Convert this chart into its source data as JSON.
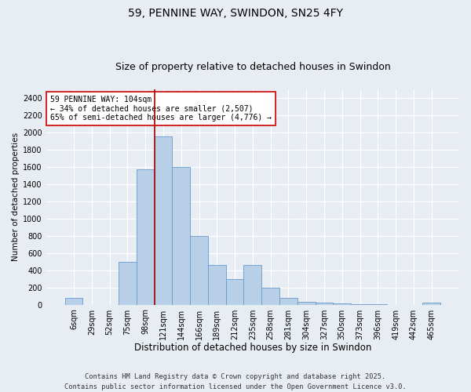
{
  "title1": "59, PENNINE WAY, SWINDON, SN25 4FY",
  "title2": "Size of property relative to detached houses in Swindon",
  "xlabel": "Distribution of detached houses by size in Swindon",
  "ylabel": "Number of detached properties",
  "categories": [
    "6sqm",
    "29sqm",
    "52sqm",
    "75sqm",
    "98sqm",
    "121sqm",
    "144sqm",
    "166sqm",
    "189sqm",
    "212sqm",
    "235sqm",
    "258sqm",
    "281sqm",
    "304sqm",
    "327sqm",
    "350sqm",
    "373sqm",
    "396sqm",
    "419sqm",
    "442sqm",
    "465sqm"
  ],
  "values": [
    75,
    0,
    0,
    500,
    1575,
    1950,
    1600,
    800,
    460,
    300,
    460,
    200,
    75,
    30,
    20,
    10,
    5,
    5,
    0,
    0,
    20
  ],
  "bar_color": "#b8cfe8",
  "bar_edge_color": "#6699cc",
  "background_color": "#e8edf4",
  "grid_color": "#d0d8e8",
  "annotation_box_color": "#ffffff",
  "annotation_box_edge": "#cc0000",
  "vline_x_index": 4.5,
  "vline_color": "#aa0000",
  "annotation_text": "59 PENNINE WAY: 104sqm\n← 34% of detached houses are smaller (2,507)\n65% of semi-detached houses are larger (4,776) →",
  "annotation_fontsize": 7.0,
  "title1_fontsize": 10,
  "title2_fontsize": 9,
  "xlabel_fontsize": 8.5,
  "ylabel_fontsize": 7.5,
  "tick_fontsize": 7,
  "footer_text": "Contains HM Land Registry data © Crown copyright and database right 2025.\nContains public sector information licensed under the Open Government Licence v3.0.",
  "ylim": [
    0,
    2500
  ],
  "yticks": [
    0,
    200,
    400,
    600,
    800,
    1000,
    1200,
    1400,
    1600,
    1800,
    2000,
    2200,
    2400
  ]
}
